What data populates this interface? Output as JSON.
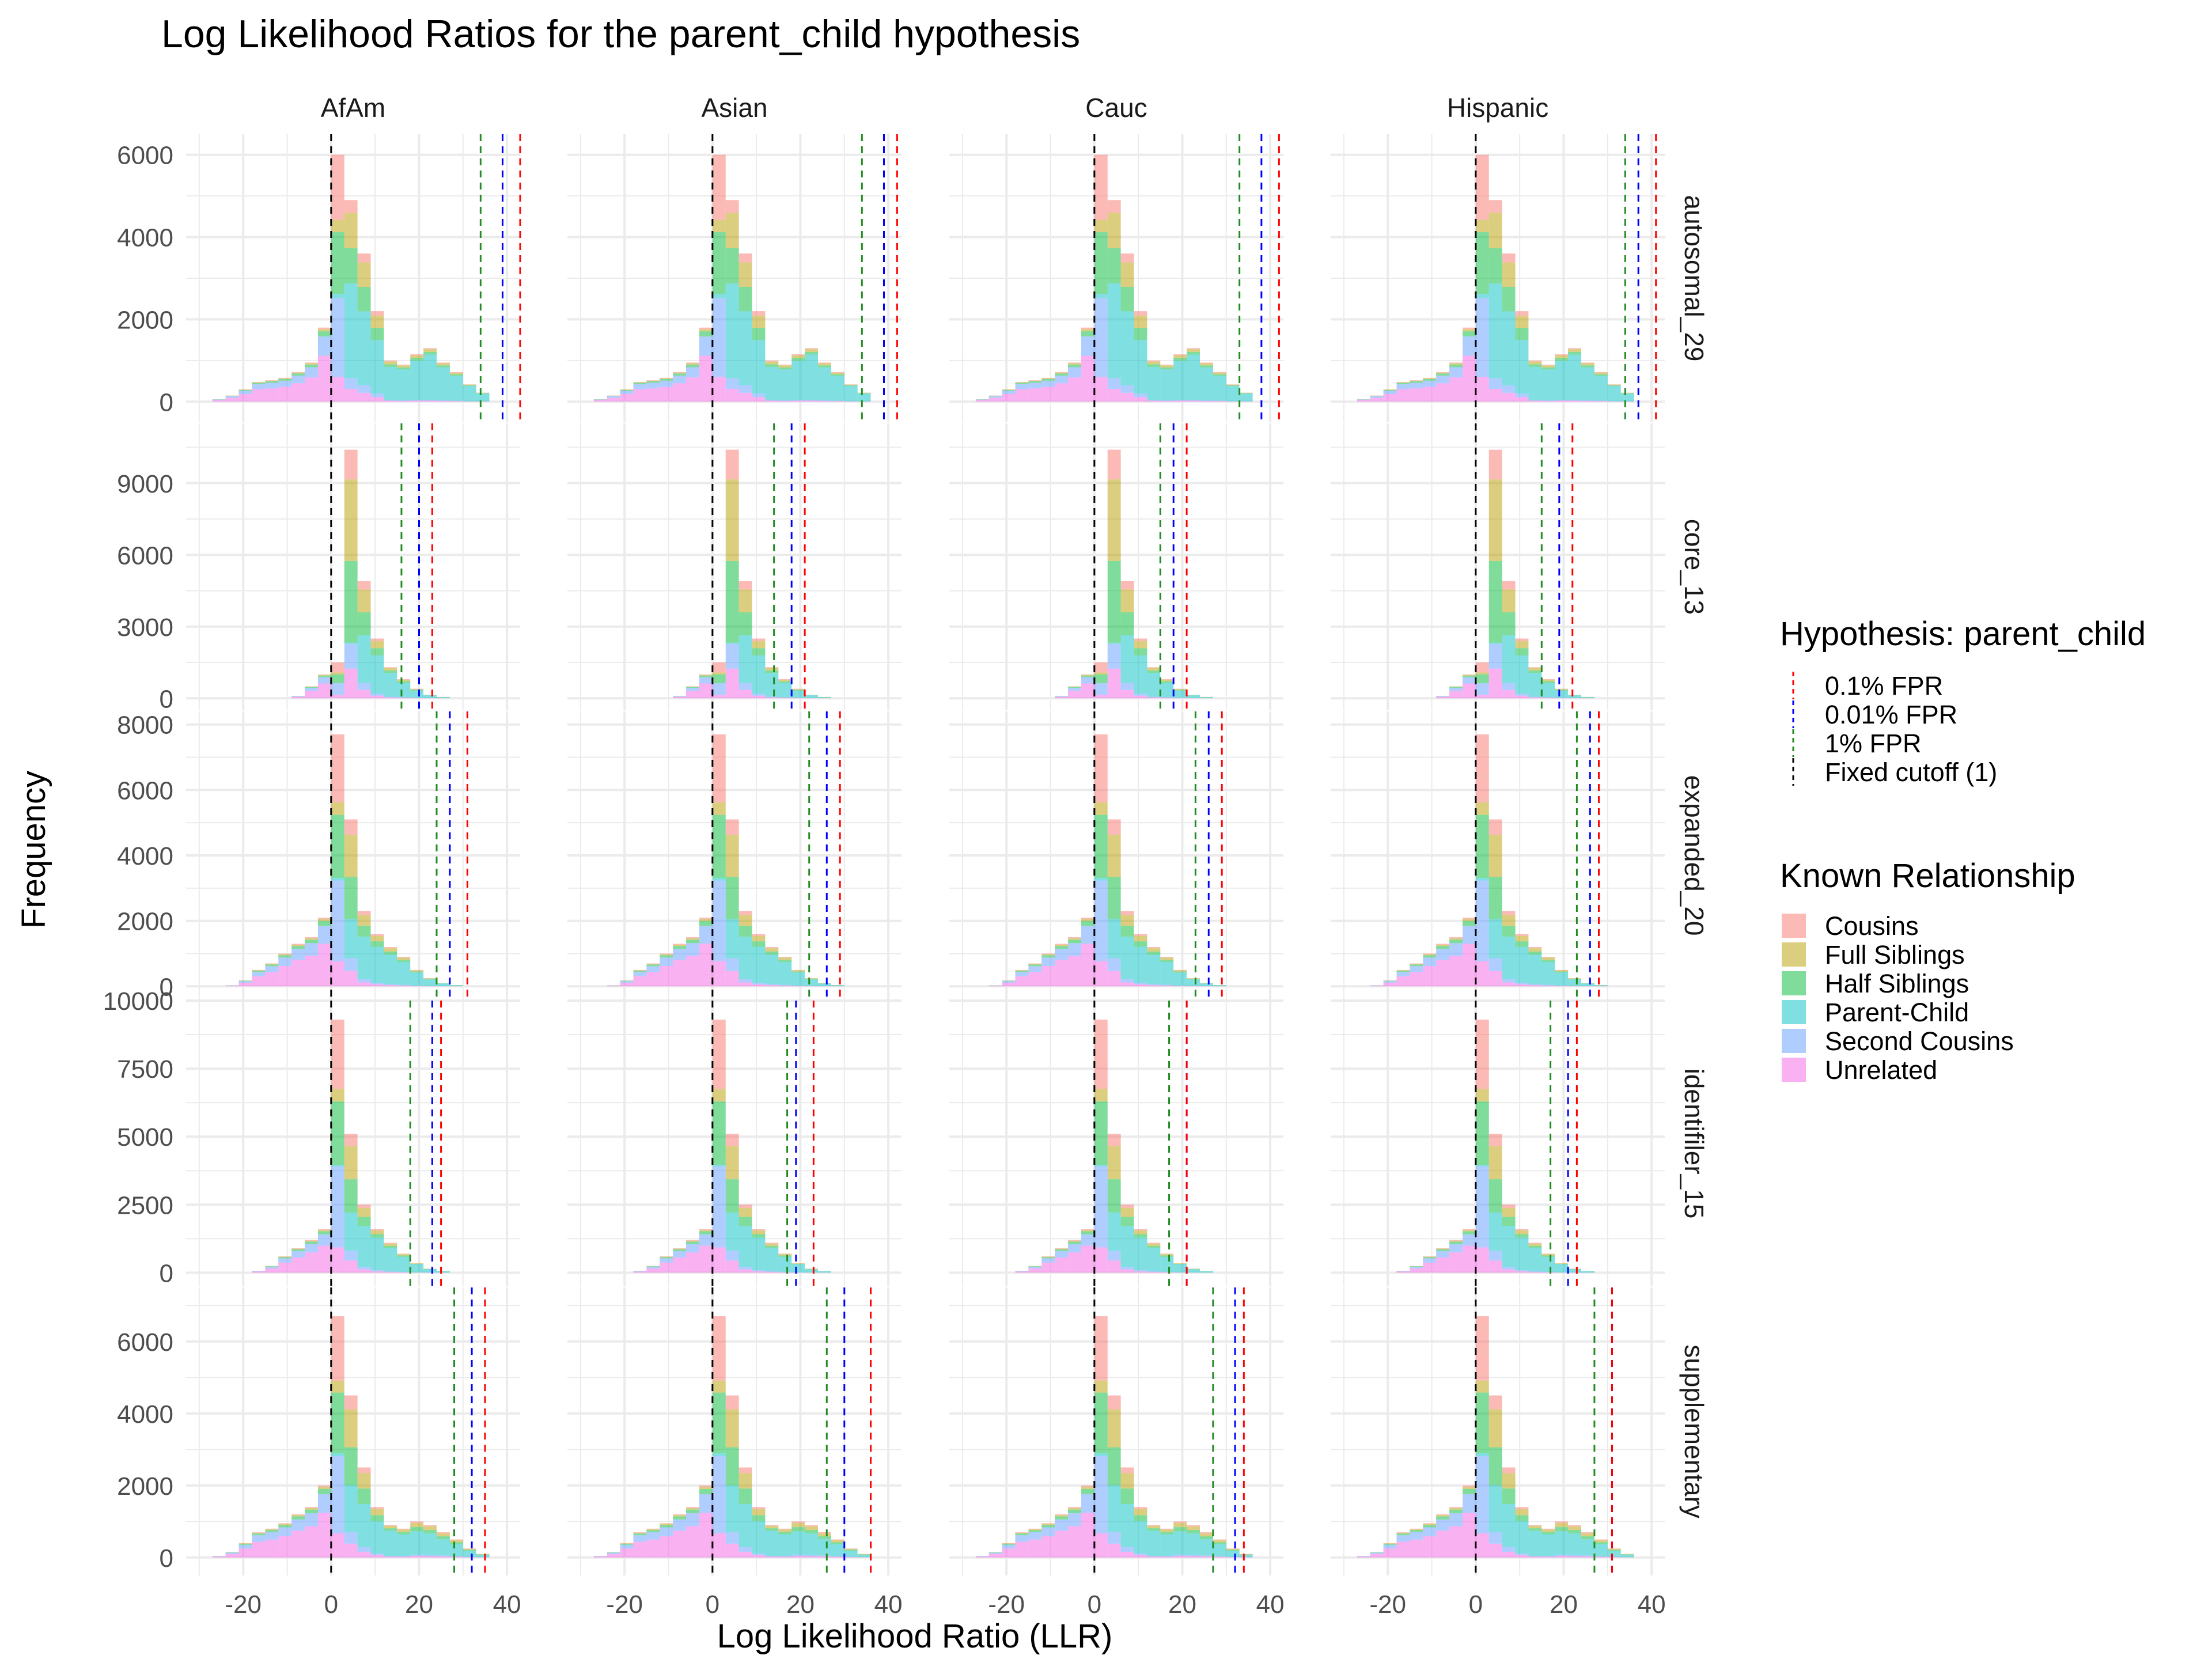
{
  "chart_data": {
    "type": "histogram-facet",
    "title": "Log Likelihood Ratios for the parent_child hypothesis",
    "xlabel": "Log Likelihood Ratio (LLR)",
    "ylabel": "Frequency",
    "xlim": [
      -33,
      43
    ],
    "x_ticks": [
      -20,
      0,
      20,
      40
    ],
    "bin_edges": [
      -27,
      -24,
      -21,
      -18,
      -15,
      -12,
      -9,
      -6,
      -3,
      0,
      3,
      6,
      9,
      12,
      15,
      18,
      21,
      24,
      27,
      30,
      33,
      36
    ],
    "columns": [
      "AfAm",
      "Asian",
      "Cauc",
      "Hispanic"
    ],
    "rows": [
      {
        "name": "autosomal_29",
        "ylim": [
          -500,
          6500
        ],
        "y_ticks": [
          0,
          2000,
          4000,
          6000
        ]
      },
      {
        "name": "core_13",
        "ylim": [
          -500,
          11500
        ],
        "y_ticks": [
          0,
          3000,
          6000,
          9000
        ]
      },
      {
        "name": "expanded_20",
        "ylim": [
          -400,
          8400
        ],
        "y_ticks": [
          0,
          2000,
          4000,
          6000,
          8000
        ]
      },
      {
        "name": "identifiler_15",
        "ylim": [
          -500,
          10000
        ],
        "y_ticks": [
          0,
          2500,
          5000,
          7500,
          10000
        ]
      },
      {
        "name": "supplementary",
        "ylim": [
          -500,
          7500
        ],
        "y_ticks": [
          0,
          2000,
          4000,
          6000
        ]
      }
    ],
    "series_colors": {
      "Cousins": "#F8766D",
      "Full Siblings": "#B79F00",
      "Half Siblings": "#00BA38",
      "Parent-Child": "#00BFC4",
      "Second Cousins": "#619CFF",
      "Unrelated": "#F564E3"
    },
    "stack_order": [
      "Unrelated",
      "Second Cousins",
      "Parent-Child",
      "Half Siblings",
      "Full Siblings",
      "Cousins"
    ],
    "profiles": {
      "autosomal_29": {
        "total": [
          60,
          150,
          300,
          480,
          520,
          580,
          720,
          950,
          1800,
          6000,
          4000,
          2900,
          1700,
          700,
          650,
          850,
          950,
          700,
          520,
          300,
          150,
          60
        ],
        "parent_child": [
          0,
          0,
          0,
          0,
          0,
          0,
          0,
          0,
          0,
          100,
          1400,
          1100,
          800,
          500,
          500,
          650,
          750,
          550,
          400,
          250,
          120,
          50
        ],
        "tail": [
          0,
          0,
          0,
          0,
          0,
          0,
          0,
          0,
          0,
          0,
          900,
          700,
          500,
          300,
          250,
          300,
          350,
          250,
          200,
          120,
          70,
          30
        ]
      },
      "core_13": {
        "total": [
          0,
          0,
          0,
          0,
          0,
          0,
          100,
          500,
          1000,
          1500,
          10400,
          4900,
          2500,
          1300,
          800,
          400,
          150,
          60,
          0,
          0,
          0,
          0
        ],
        "parent_child": [
          0,
          0,
          0,
          0,
          0,
          0,
          0,
          0,
          0,
          0,
          50,
          2000,
          1600,
          1000,
          600,
          300,
          120,
          40,
          0,
          0,
          0,
          0
        ]
      },
      "expanded_20": {
        "total": [
          0,
          30,
          180,
          500,
          700,
          1000,
          1300,
          1500,
          2100,
          7700,
          5100,
          2300,
          1600,
          1200,
          900,
          500,
          250,
          100,
          40,
          0,
          0,
          0
        ],
        "parent_child": [
          0,
          0,
          0,
          0,
          0,
          0,
          0,
          0,
          0,
          80,
          1200,
          1300,
          1100,
          900,
          700,
          400,
          200,
          80,
          30,
          0,
          0,
          0
        ]
      },
      "identifiler_15": {
        "total": [
          0,
          0,
          0,
          70,
          250,
          600,
          900,
          1200,
          1600,
          9300,
          5100,
          2500,
          1600,
          1100,
          700,
          350,
          150,
          60,
          0,
          0,
          0,
          0
        ],
        "parent_child": [
          0,
          0,
          0,
          0,
          0,
          0,
          0,
          0,
          0,
          60,
          1400,
          1500,
          1200,
          850,
          550,
          300,
          120,
          50,
          0,
          0,
          0,
          0
        ]
      },
      "supplementary": {
        "total": [
          40,
          150,
          400,
          700,
          800,
          950,
          1200,
          1400,
          2000,
          6700,
          4500,
          2500,
          1400,
          900,
          800,
          1000,
          900,
          700,
          500,
          250,
          100,
          40
        ],
        "parent_child": [
          0,
          0,
          0,
          0,
          0,
          0,
          0,
          0,
          0,
          90,
          1300,
          1200,
          900,
          700,
          600,
          650,
          600,
          450,
          330,
          170,
          70,
          30
        ]
      }
    },
    "thresholds": {
      "fixed_cutoff": 0,
      "autosomal_29": {
        "AfAm": [
          34,
          39,
          43
        ],
        "Asian": [
          34,
          39,
          42
        ],
        "Cauc": [
          33,
          38,
          42
        ],
        "Hispanic": [
          34,
          37,
          41
        ]
      },
      "core_13": {
        "AfAm": [
          16,
          20,
          23
        ],
        "Asian": [
          14,
          18,
          21
        ],
        "Cauc": [
          15,
          18,
          21
        ],
        "Hispanic": [
          15,
          19,
          22
        ]
      },
      "expanded_20": {
        "AfAm": [
          24,
          27,
          31
        ],
        "Asian": [
          22,
          26,
          29
        ],
        "Cauc": [
          23,
          26,
          29
        ],
        "Hispanic": [
          23,
          26,
          28
        ]
      },
      "identifiler_15": {
        "AfAm": [
          18,
          23,
          25
        ],
        "Asian": [
          17,
          19,
          23
        ],
        "Cauc": [
          17,
          21,
          21
        ],
        "Hispanic": [
          17,
          21,
          23
        ]
      },
      "supplementary": {
        "AfAm": [
          28,
          32,
          35
        ],
        "Asian": [
          26,
          30,
          36
        ],
        "Cauc": [
          27,
          32,
          34
        ],
        "Hispanic": [
          27,
          31,
          31
        ]
      }
    },
    "threshold_colors": {
      "1% FPR": "#228B22",
      "0.01% FPR": "#0000FF",
      "0.1% FPR": "#FF0000",
      "Fixed cutoff (1)": "#000000"
    },
    "legend": {
      "hypothesis_title": "Hypothesis: parent_child",
      "hypothesis_items": [
        "0.1% FPR",
        "0.01% FPR",
        "1% FPR",
        "Fixed cutoff (1)"
      ],
      "relationship_title": "Known Relationship",
      "relationship_items": [
        "Cousins",
        "Full Siblings",
        "Half Siblings",
        "Parent-Child",
        "Second Cousins",
        "Unrelated"
      ],
      "placement": "right"
    }
  }
}
